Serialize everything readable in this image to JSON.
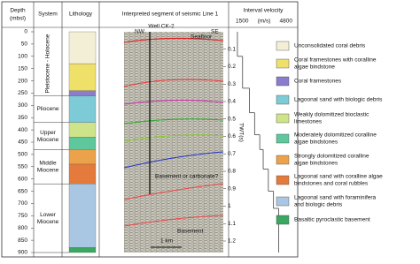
{
  "header": {
    "depth": [
      "Depth",
      "(mbsl)"
    ],
    "system": "System",
    "lithology": "Lithology",
    "seismic": "Interpreted segment of seismic Line 1",
    "velocity": "Interval velocity"
  },
  "depth_axis": {
    "ylim": [
      0,
      900
    ],
    "ticks": [
      0,
      50,
      100,
      150,
      200,
      250,
      300,
      350,
      400,
      450,
      500,
      550,
      600,
      650,
      700,
      750,
      800,
      850,
      900
    ]
  },
  "systems": [
    {
      "lines": [
        "Pleistocene - Holocene"
      ],
      "top": 0,
      "bottom": 260,
      "vertical": true
    },
    {
      "lines": [
        "Pliocene"
      ],
      "top": 260,
      "bottom": 370
    },
    {
      "lines": [
        "Upper",
        "Miocene"
      ],
      "top": 370,
      "bottom": 480
    },
    {
      "lines": [
        "Middle",
        "Miocene"
      ],
      "top": 480,
      "bottom": 620
    },
    {
      "lines": [
        "Lower",
        "Miocene"
      ],
      "top": 620,
      "bottom": 900
    }
  ],
  "lithology": [
    {
      "top": 0,
      "bottom": 130,
      "color": "#f3efd6"
    },
    {
      "top": 130,
      "bottom": 240,
      "color": "#efe06a"
    },
    {
      "top": 240,
      "bottom": 262,
      "color": "#8c7ccc"
    },
    {
      "top": 262,
      "bottom": 370,
      "color": "#7ccbd6"
    },
    {
      "top": 370,
      "bottom": 430,
      "color": "#cfe38a"
    },
    {
      "top": 430,
      "bottom": 480,
      "color": "#5ec79c"
    },
    {
      "top": 480,
      "bottom": 540,
      "color": "#eba24a"
    },
    {
      "top": 540,
      "bottom": 620,
      "color": "#e47a3c"
    },
    {
      "top": 620,
      "bottom": 880,
      "color": "#a9c7e2"
    },
    {
      "top": 880,
      "bottom": 900,
      "color": "#3aa860"
    }
  ],
  "seismic": {
    "nw": "NW",
    "well": "Well CK-2",
    "se": "SE",
    "seafloor": "Seafloor",
    "basement_q": "Basement or carbonate?",
    "basement": "Basement",
    "scale": "1 km",
    "twt_label": "TWT(s)",
    "twt_lim": [
      0,
      1.2
    ],
    "twt_ticks": [
      0.1,
      0.2,
      0.3,
      0.4,
      0.5,
      0.6,
      0.7,
      0.8,
      0.9,
      1.0,
      1.1,
      1.2
    ]
  },
  "velocity": {
    "xlim": [
      1500,
      4800
    ],
    "ticks": [
      1500,
      4800
    ],
    "unit": "(m/s)",
    "tops": [
      0,
      100,
      230,
      330,
      420,
      480,
      560,
      650,
      720
    ],
    "values": [
      1600,
      1900,
      2300,
      2600,
      2900,
      3100,
      3400,
      3700,
      4000
    ],
    "bottom": 900
  },
  "legend": [
    {
      "lines": [
        "Unconsolidated coral debris"
      ],
      "color": "#f3efd6"
    },
    {
      "lines": [
        "Coral framestones with coralline",
        "algae bindstone"
      ],
      "color": "#efe06a"
    },
    {
      "lines": [
        "Coral framestones"
      ],
      "color": "#8c7ccc"
    },
    {
      "lines": [
        "Lagoonal sand with biologic debris"
      ],
      "color": "#7ccbd6"
    },
    {
      "lines": [
        "Weakly dolomitized bioclastic",
        "limestones"
      ],
      "color": "#cfe38a"
    },
    {
      "lines": [
        "Moderately dolomitized coralline",
        "algae bindstones"
      ],
      "color": "#5ec79c"
    },
    {
      "lines": [
        "Strongly dolomitized coralline",
        "algae bindstones"
      ],
      "color": "#eba24a"
    },
    {
      "lines": [
        "Lagoonal sand with coralline algae",
        "bindstones and coral rubbles"
      ],
      "color": "#e47a3c"
    },
    {
      "lines": [
        "Lagoonal sand with foraminifera",
        "and biologic debris"
      ],
      "color": "#a9c7e2"
    },
    {
      "lines": [
        "Basaltic pyroclastic basement"
      ],
      "color": "#3aa860"
    }
  ]
}
